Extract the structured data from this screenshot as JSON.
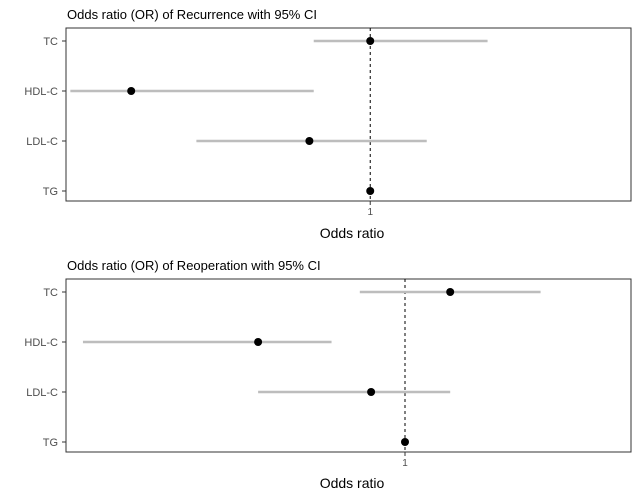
{
  "chart_data": [
    {
      "type": "forest",
      "title": "Odds ratio (OR) of Recurrence with 95% CI",
      "xlabel": "Odds ratio",
      "ylabel": "",
      "reference_line": 1,
      "x_ticks": [
        {
          "value": 1,
          "label": "1"
        }
      ],
      "xlim": [
        0.3,
        1.6
      ],
      "grid": false,
      "legend": "none",
      "categories": [
        "TC",
        "HDL-C",
        "LDL-C",
        "TG"
      ],
      "or": [
        1.0,
        0.45,
        0.86,
        1.0
      ],
      "ci_low": [
        0.87,
        0.31,
        0.6,
        0.999
      ],
      "ci_high": [
        1.27,
        0.87,
        1.13,
        1.001
      ],
      "colors": {
        "point": "#000000",
        "ci": "#bdbdbd",
        "reference": "#000000"
      }
    },
    {
      "type": "forest",
      "title": "Odds ratio (OR) of Reoperation with 95% CI",
      "xlabel": "Odds ratio",
      "ylabel": "",
      "reference_line": 1,
      "x_ticks": [
        {
          "value": 1,
          "label": "1"
        }
      ],
      "xlim": [
        0.4,
        1.4
      ],
      "grid": false,
      "legend": "none",
      "categories": [
        "TC",
        "HDL-C",
        "LDL-C",
        "TG"
      ],
      "or": [
        1.08,
        0.74,
        0.94,
        1.0
      ],
      "ci_low": [
        0.92,
        0.43,
        0.74,
        0.999
      ],
      "ci_high": [
        1.24,
        0.87,
        1.08,
        1.001
      ],
      "colors": {
        "point": "#000000",
        "ci": "#bdbdbd",
        "reference": "#000000"
      }
    }
  ]
}
